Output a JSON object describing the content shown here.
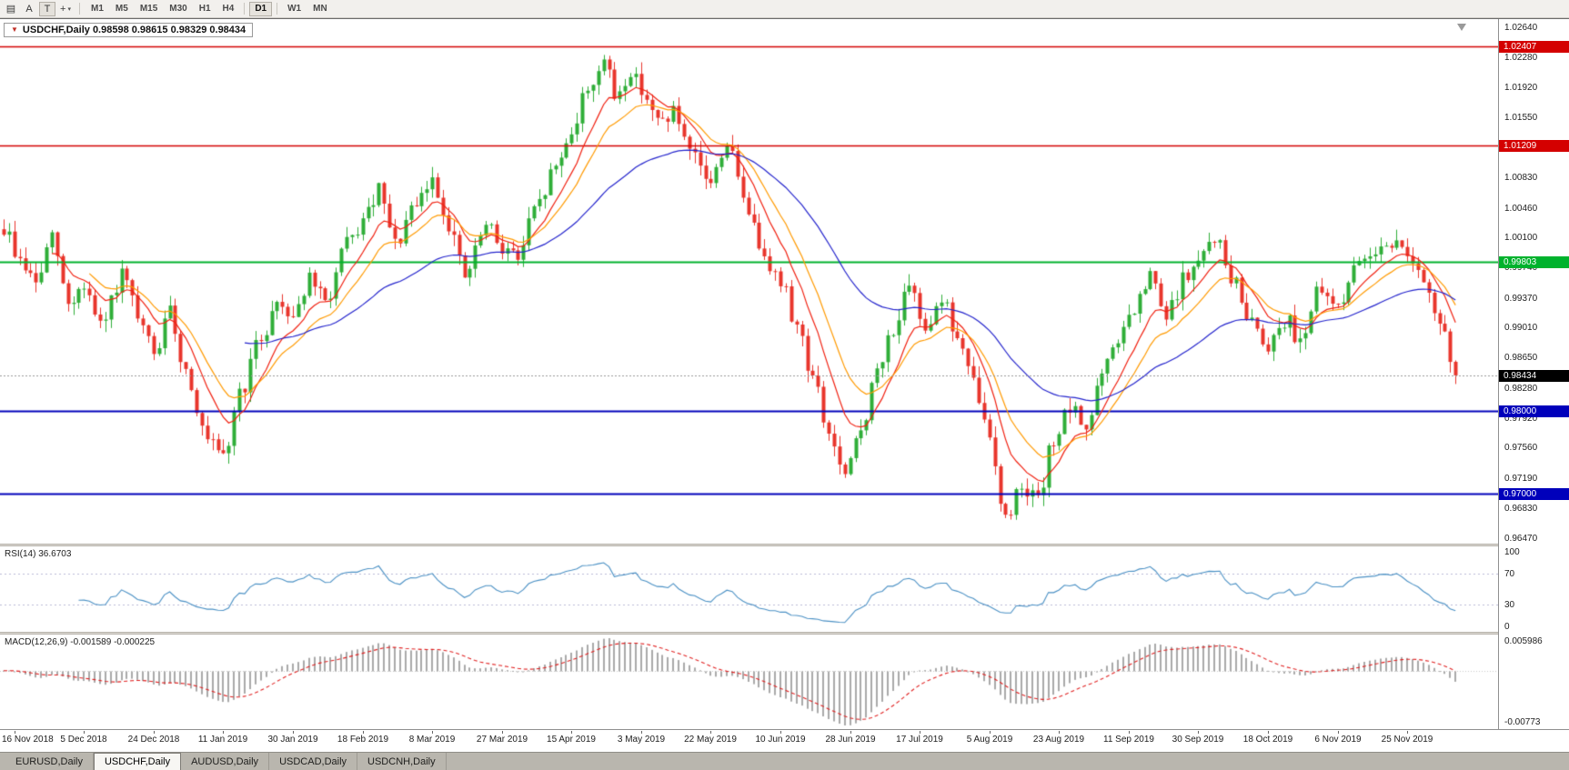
{
  "toolbar": {
    "tools": [
      {
        "id": "charts-list",
        "glyph": "▤"
      },
      {
        "id": "text-tool",
        "glyph": "A"
      },
      {
        "id": "arrow-tool",
        "glyph": "T"
      },
      {
        "id": "cursor-tool",
        "glyph": "+",
        "caret": "▾"
      }
    ],
    "timeframes": [
      "M1",
      "M5",
      "M15",
      "M30",
      "H1",
      "H4",
      "D1",
      "W1",
      "MN"
    ],
    "active_timeframe": "D1"
  },
  "chart": {
    "collapse_icon": "▼",
    "title_line": "USDCHF,Daily 0.98598 0.98615 0.98329 0.98434"
  },
  "price_axis": {
    "labels": [
      "1.02640",
      "1.02280",
      "1.01920",
      "1.01550",
      "1.01190",
      "1.00830",
      "1.00460",
      "1.00100",
      "0.99740",
      "0.99370",
      "0.99010",
      "0.98650",
      "0.98280",
      "0.97920",
      "0.97560",
      "0.97190",
      "0.96830",
      "0.96470"
    ]
  },
  "hlines": [
    {
      "value": 1.02407,
      "label": "1.02407",
      "color": "#d40000",
      "width": 1.4
    },
    {
      "value": 1.01209,
      "label": "1.01209",
      "color": "#d40000",
      "width": 1.4
    },
    {
      "value": 0.99803,
      "label": "0.99803",
      "color": "#00b22d",
      "width": 2
    },
    {
      "value": 0.98,
      "label": "0.98000",
      "color": "#0000bb",
      "width": 2
    },
    {
      "value": 0.97,
      "label": "0.97000",
      "color": "#0000bb",
      "width": 2
    }
  ],
  "current_price": {
    "value": 0.98434,
    "label": "0.98434",
    "tag_bg": "#000000"
  },
  "rsi_panel": {
    "label": "RSI(14) 36.6703",
    "levels": [
      "100",
      "70",
      "30",
      "0"
    ],
    "line_color": "#4a90c4",
    "level_line_color": "#b9b9d6"
  },
  "macd_panel": {
    "label": "MACD(12,26,9) -0.001589 -0.000225",
    "axis_top": "0.005986",
    "axis_bottom": "-0.00773",
    "hist_color": "#a9a9a9",
    "signal_color": "#e02020"
  },
  "date_axis": [
    "16 Nov 2018",
    "5 Dec 2018",
    "24 Dec 2018",
    "11 Jan 2019",
    "30 Jan 2019",
    "18 Feb 2019",
    "8 Mar 2019",
    "27 Mar 2019",
    "15 Apr 2019",
    "3 May 2019",
    "22 May 2019",
    "10 Jun 2019",
    "28 Jun 2019",
    "17 Jul 2019",
    "5 Aug 2019",
    "23 Aug 2019",
    "11 Sep 2019",
    "30 Sep 2019",
    "18 Oct 2019",
    "6 Nov 2019",
    "25 Nov 2019"
  ],
  "tabs": [
    {
      "label": "EURUSD,Daily",
      "active": false
    },
    {
      "label": "USDCHF,Daily",
      "active": true
    },
    {
      "label": "AUDUSD,Daily",
      "active": false
    },
    {
      "label": "USDCAD,Daily",
      "active": false
    },
    {
      "label": "USDCNH,Daily",
      "active": false
    }
  ],
  "colors": {
    "candle_up": "#2fae38",
    "candle_down": "#e8352c"
  },
  "chart_data": {
    "type": "candlestick",
    "symbol": "USDCHF",
    "timeframe": "Daily",
    "title": "USDCHF,Daily 0.98598 0.98615 0.98329 0.98434",
    "last_ohlc": {
      "open": 0.98598,
      "high": 0.98615,
      "low": 0.98329,
      "close": 0.98434
    },
    "ylim": [
      0.964,
      1.0274
    ],
    "bars_total": 272,
    "bars_per_date_tick": 13,
    "first_tick_bar": 2,
    "price_extremes": {
      "high": 1.0238,
      "low": 0.9654
    },
    "horizontal_levels": [
      1.02407,
      1.01209,
      0.99803,
      0.98,
      0.97
    ],
    "current_price": 0.98434,
    "moving_averages": [
      {
        "name": "fast-ma",
        "period": 9,
        "color": "#f02010"
      },
      {
        "name": "mid-ma",
        "period": 16,
        "color": "#ff9a00"
      },
      {
        "name": "slow-ma",
        "period": 45,
        "color": "#2424cc"
      }
    ],
    "rsi_period": 14,
    "rsi_last": 36.6703,
    "rsi_levels": [
      70,
      30
    ],
    "macd_params": [
      12,
      26,
      9
    ],
    "macd_last": [
      -0.001589,
      -0.000225
    ],
    "macd_ylim": [
      -0.00773,
      0.005986
    ],
    "price_waypoints": [
      [
        0,
        1.002
      ],
      [
        3,
        0.9982
      ],
      [
        6,
        0.9955
      ],
      [
        9,
        1.0008
      ],
      [
        12,
        0.993
      ],
      [
        15,
        0.9952
      ],
      [
        18,
        0.99
      ],
      [
        22,
        0.9962
      ],
      [
        26,
        0.9898
      ],
      [
        28,
        0.9868
      ],
      [
        31,
        0.9918
      ],
      [
        34,
        0.9848
      ],
      [
        38,
        0.9762
      ],
      [
        41,
        0.974
      ],
      [
        44,
        0.9822
      ],
      [
        48,
        0.9888
      ],
      [
        51,
        0.9932
      ],
      [
        54,
        0.9918
      ],
      [
        57,
        0.9958
      ],
      [
        60,
        0.9932
      ],
      [
        64,
        1.0
      ],
      [
        67,
        1.0028
      ],
      [
        70,
        1.0065
      ],
      [
        73,
        1.0
      ],
      [
        76,
        1.0038
      ],
      [
        80,
        1.0078
      ],
      [
        83,
        1.0028
      ],
      [
        86,
        0.9962
      ],
      [
        90,
        1.0022
      ],
      [
        93,
        1.0
      ],
      [
        96,
        0.9985
      ],
      [
        99,
        1.004
      ],
      [
        103,
        1.0095
      ],
      [
        106,
        1.014
      ],
      [
        109,
        1.019
      ],
      [
        112,
        1.0225
      ],
      [
        114,
        1.018
      ],
      [
        117,
        1.0208
      ],
      [
        119,
        1.0192
      ],
      [
        122,
        1.0148
      ],
      [
        125,
        1.0162
      ],
      [
        128,
        1.0108
      ],
      [
        132,
        1.0078
      ],
      [
        135,
        1.0125
      ],
      [
        138,
        1.006
      ],
      [
        141,
        1.0005
      ],
      [
        145,
        0.9955
      ],
      [
        148,
        0.9905
      ],
      [
        151,
        0.984
      ],
      [
        154,
        0.9772
      ],
      [
        157,
        0.9718
      ],
      [
        160,
        0.978
      ],
      [
        163,
        0.9845
      ],
      [
        166,
        0.9902
      ],
      [
        169,
        0.9945
      ],
      [
        172,
        0.9905
      ],
      [
        175,
        0.9938
      ],
      [
        178,
        0.9888
      ],
      [
        181,
        0.9832
      ],
      [
        184,
        0.9768
      ],
      [
        187,
        0.9668
      ],
      [
        190,
        0.9714
      ],
      [
        193,
        0.969
      ],
      [
        196,
        0.9768
      ],
      [
        199,
        0.98
      ],
      [
        202,
        0.9782
      ],
      [
        205,
        0.9842
      ],
      [
        208,
        0.9888
      ],
      [
        211,
        0.992
      ],
      [
        214,
        0.9962
      ],
      [
        217,
        0.9912
      ],
      [
        220,
        0.9958
      ],
      [
        223,
        0.9978
      ],
      [
        226,
        1.0012
      ],
      [
        229,
        0.9962
      ],
      [
        232,
        0.992
      ],
      [
        236,
        0.9882
      ],
      [
        239,
        0.9912
      ],
      [
        242,
        0.9888
      ],
      [
        245,
        0.994
      ],
      [
        249,
        0.993
      ],
      [
        252,
        0.9968
      ],
      [
        255,
        0.9995
      ],
      [
        258,
        1.0005
      ],
      [
        262,
        0.9996
      ],
      [
        264,
        0.9965
      ],
      [
        266,
        0.9935
      ],
      [
        268,
        0.9905
      ],
      [
        270,
        0.9868
      ],
      [
        271,
        0.98434
      ]
    ]
  }
}
